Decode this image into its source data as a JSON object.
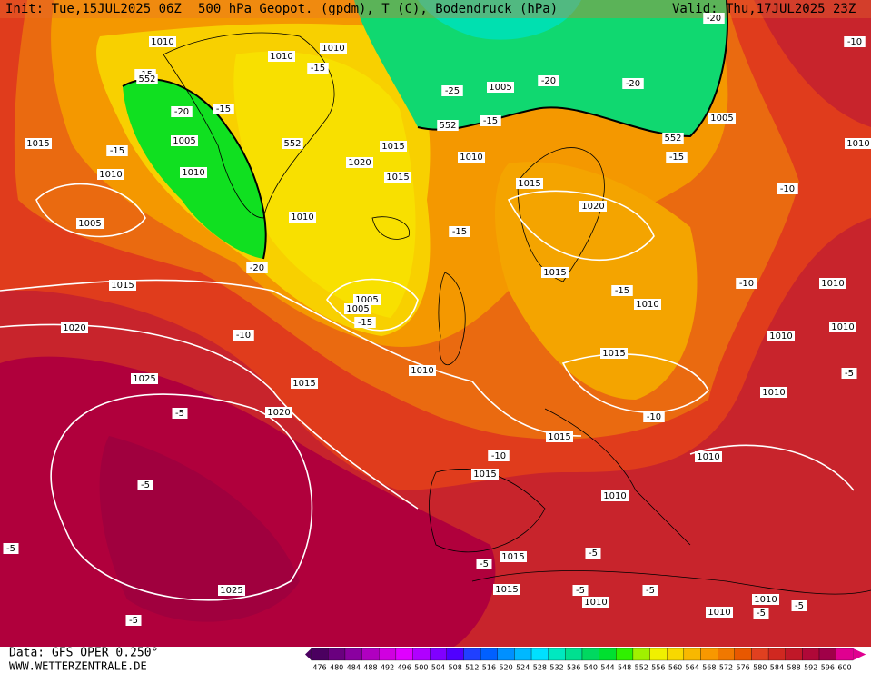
{
  "header": {
    "init": "Init: Tue,15JUL2025 06Z",
    "title": "500 hPa Geopot. (gpdm), T (C), Bodendruck (hPa)",
    "valid": "Valid: Thu,17JUL2025 23Z"
  },
  "map": {
    "labels": [
      "1010",
      "1010",
      "1010",
      "-15",
      "-15",
      "552",
      "-20",
      "-15",
      "1005",
      "552",
      "1015",
      "-15",
      "1015",
      "1010",
      "1010",
      "1020",
      "1015",
      "1010",
      "1015",
      "-25",
      "1005",
      "-20",
      "-20",
      "1005",
      "552",
      "552",
      "-15",
      "-15",
      "1020",
      "1005",
      "1010",
      "-20",
      "-15",
      "1015",
      "1015",
      "1005",
      "1005",
      "-15",
      "-10",
      "1020",
      "-15",
      "1010",
      "-10",
      "1010",
      "-10",
      "1010",
      "1010",
      "1015",
      "1010",
      "1025",
      "1015",
      "1020",
      "-5",
      "-5",
      "1010",
      "-5",
      "-10",
      "1015",
      "-10",
      "1010",
      "1015",
      "1010",
      "1015",
      "-5",
      "-5",
      "1015",
      "-5",
      "1010",
      "-5",
      "1010",
      "-5",
      "1010",
      "-5",
      "1025",
      "-5",
      "-5",
      "-20",
      "-10",
      "1010"
    ]
  },
  "colorbar": {
    "ticks": [
      476,
      480,
      484,
      488,
      492,
      496,
      500,
      504,
      508,
      512,
      516,
      520,
      524,
      528,
      532,
      536,
      540,
      544,
      548,
      552,
      556,
      560,
      564,
      568,
      572,
      576,
      580,
      584,
      588,
      592,
      596,
      600
    ],
    "colors": [
      "#4b0060",
      "#6a007f",
      "#8a00a0",
      "#b000c0",
      "#d000e0",
      "#e000ff",
      "#b000ff",
      "#8000ff",
      "#5000ff",
      "#2040ff",
      "#0060ff",
      "#0090ff",
      "#00b8ff",
      "#00e0ff",
      "#00e8c0",
      "#00e090",
      "#00d860",
      "#00e030",
      "#30f000",
      "#a0f000",
      "#f0f000",
      "#f8d800",
      "#f8b800",
      "#f89800",
      "#f07800",
      "#e85800",
      "#e04020",
      "#d02820",
      "#c01828",
      "#b00838",
      "#a00048",
      "#e00090"
    ]
  },
  "footer": {
    "data": "Data: GFS OPER 0.250°",
    "site": "WWW.WETTERZENTRALE.DE"
  }
}
